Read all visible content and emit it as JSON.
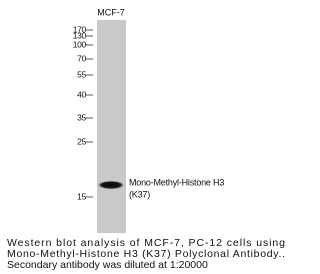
{
  "blot": {
    "lane_label": "MCF-7",
    "markers": [
      "170",
      "130",
      "100",
      "70",
      "55",
      "40",
      "35",
      "25",
      "15"
    ],
    "band_label": [
      "Mono-Methyl-Histone H3",
      "(K37)"
    ]
  },
  "caption": [
    "Western blot analysis of MCF-7, PC-12 cells using",
    "Mono-Methyl-Histone H3 (K37) Polyclonal Antibody..",
    "Secondary antibody was diluted at 1:20000"
  ]
}
